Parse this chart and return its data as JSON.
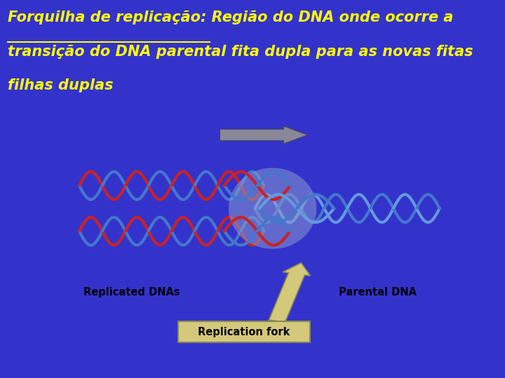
{
  "bg_color": "#3333cc",
  "title_color": "#ffff00",
  "title_fontsize": 15,
  "panel_bg": "#a0a8b8",
  "label_replicated": "Replicated DNAs",
  "label_parental": "Parental DNA",
  "label_fork": "Replication fork",
  "fork_circle_color": "#8899cc",
  "fork_circle_alpha": 0.55,
  "red_strand": "#cc2222",
  "blue_strand": "#4477cc",
  "blue_strand2": "#6699dd"
}
